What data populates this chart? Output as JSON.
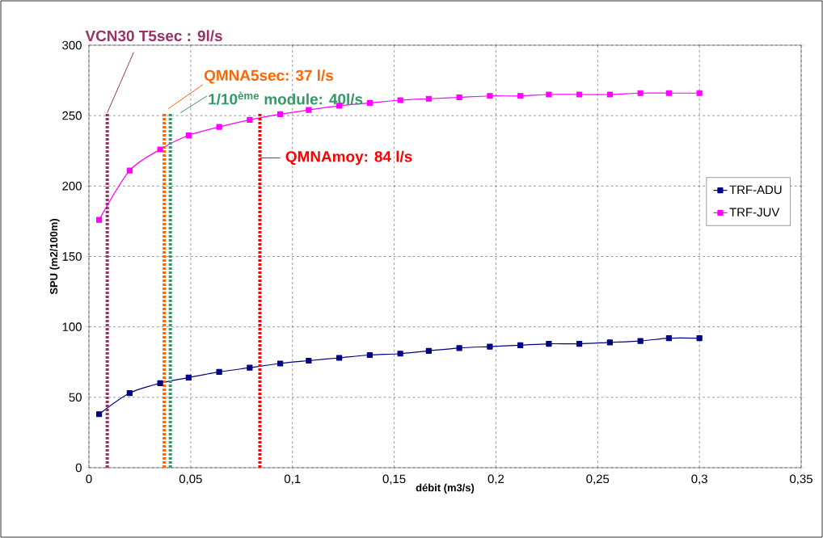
{
  "chart_data": {
    "type": "line",
    "xlabel": "débit (m3/s)",
    "ylabel": "SPU (m2/100m)",
    "x": [
      0.005,
      0.02,
      0.035,
      0.049,
      0.064,
      0.079,
      0.094,
      0.108,
      0.123,
      0.138,
      0.153,
      0.167,
      0.182,
      0.197,
      0.212,
      0.226,
      0.241,
      0.256,
      0.271,
      0.285,
      0.3
    ],
    "series": [
      {
        "name": "TRF-ADU",
        "color": "#000080",
        "values": [
          38,
          53,
          60,
          64,
          68,
          71,
          74,
          76,
          78,
          80,
          81,
          83,
          85,
          86,
          87,
          88,
          88,
          89,
          90,
          92,
          92
        ]
      },
      {
        "name": "TRF-JUV",
        "color": "#ff00ff",
        "values": [
          176,
          211,
          226,
          236,
          242,
          247,
          251,
          254,
          257,
          259,
          261,
          262,
          263,
          264,
          264,
          265,
          265,
          265,
          266,
          266,
          266
        ]
      }
    ],
    "xlim": [
      0,
      0.35
    ],
    "ylim": [
      0,
      300
    ],
    "xticks": [
      0,
      {
        "value": 0.05,
        "label": "0,05"
      },
      {
        "value": 0.1,
        "label": "0,1"
      },
      {
        "value": 0.15,
        "label": "0,15"
      },
      {
        "value": 0.2,
        "label": "0,2"
      },
      {
        "value": 0.25,
        "label": "0,25"
      },
      {
        "value": 0.3,
        "label": "0,3"
      },
      {
        "value": 0.35,
        "label": "0,35"
      }
    ],
    "yticks": [
      0,
      50,
      100,
      150,
      200,
      250,
      300
    ],
    "ref_lines": [
      {
        "axis": "x",
        "value": 0.009,
        "label": "VCN30 T5sec : 9l/s",
        "color": "#993366",
        "line_style": "dotted"
      },
      {
        "axis": "x",
        "value": 0.037,
        "label": "QMNA5sec: 37 l/s",
        "color": "#ff6600",
        "line_style": "dotted"
      },
      {
        "axis": "x",
        "value": 0.04,
        "label": "1/10$^{ème}$ module: 40l/s",
        "color": "#339966",
        "line_style": "dotted"
      },
      {
        "axis": "x",
        "value": 0.084,
        "label": "QMNAmoy: 84 l/s",
        "color": "#ff0000",
        "line_style": "dotted"
      }
    ],
    "grid": true,
    "legend": "right",
    "marker": "square",
    "line_style": "solid"
  }
}
